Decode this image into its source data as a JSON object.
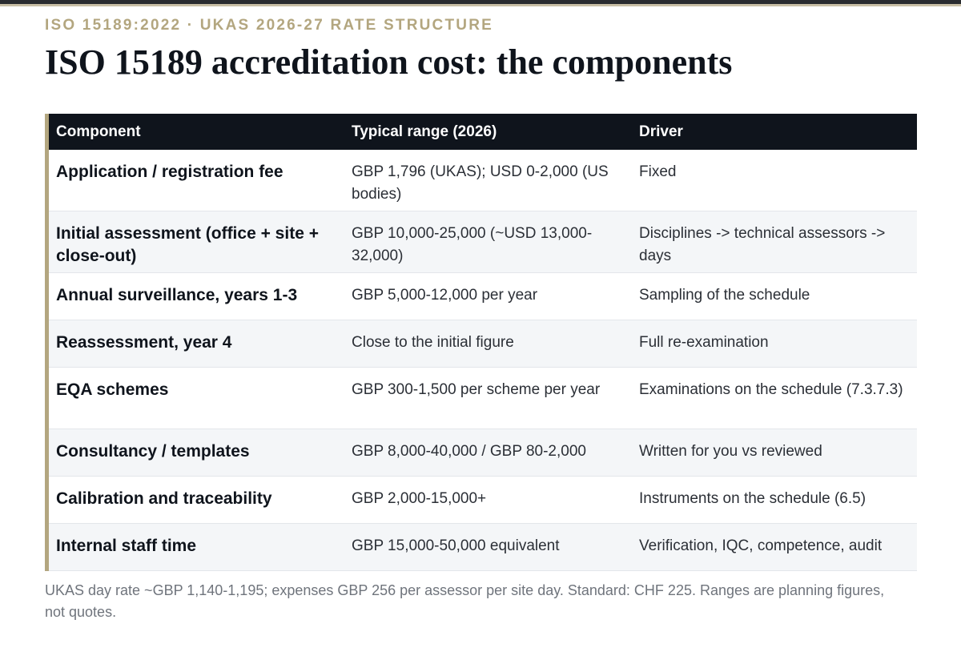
{
  "header": {
    "kicker": "ISO 15189:2022 · UKAS 2026-27 RATE STRUCTURE",
    "title": "ISO 15189 accreditation cost: the components"
  },
  "table": {
    "columns": [
      "Component",
      "Typical range (2026)",
      "Driver"
    ],
    "rows": [
      {
        "component": "Application / registration fee",
        "range": "GBP 1,796 (UKAS); USD 0-2,000 (US bodies)",
        "driver": "Fixed"
      },
      {
        "component": "Initial assessment (office + site + close-out)",
        "range": "GBP 10,000-25,000 (~USD 13,000-32,000)",
        "driver": "Disciplines -> technical assessors -> days"
      },
      {
        "component": "Annual surveillance, years 1-3",
        "range": "GBP 5,000-12,000 per year",
        "driver": "Sampling of the schedule"
      },
      {
        "component": "Reassessment, year 4",
        "range": "Close to the initial figure",
        "driver": "Full re-examination"
      },
      {
        "component": "EQA schemes",
        "range": "GBP 300-1,500 per scheme per year",
        "driver": "Examinations on the schedule (7.3.7.3)"
      },
      {
        "component": "Consultancy / templates",
        "range": "GBP 8,000-40,000 / GBP 80-2,000",
        "driver": "Written for you vs reviewed"
      },
      {
        "component": "Calibration and traceability",
        "range": "GBP 2,000-15,000+",
        "driver": "Instruments on the schedule (6.5)"
      },
      {
        "component": "Internal staff time",
        "range": "GBP 15,000-50,000 equivalent",
        "driver": "Verification, IQC, competence, audit"
      }
    ]
  },
  "footnote": "UKAS day rate ~GBP 1,140-1,195; expenses GBP 256 per assessor per site day. Standard: CHF 225. Ranges are planning figures, not quotes."
}
